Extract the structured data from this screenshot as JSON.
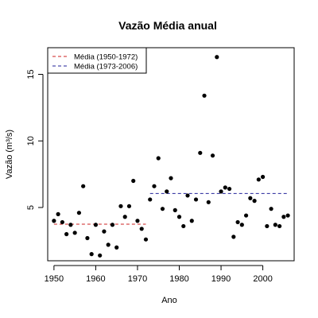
{
  "chart_data": {
    "type": "scatter",
    "title": "Vazão Média anual",
    "xlabel": "Ano",
    "ylabel": "Vazão (m³/s)",
    "xlim": [
      1948.5,
      2007.5
    ],
    "ylim": [
      1.0,
      17.0
    ],
    "x_ticks": [
      1950,
      1960,
      1970,
      1980,
      1990,
      2000
    ],
    "y_ticks": [
      5,
      10,
      15
    ],
    "grid": false,
    "legend_position": "top-left",
    "point_color": "#000000",
    "series": [
      {
        "name": "Vazão",
        "points": [
          [
            1950,
            4.0
          ],
          [
            1951,
            4.5
          ],
          [
            1952,
            3.9
          ],
          [
            1953,
            3.0
          ],
          [
            1954,
            3.7
          ],
          [
            1955,
            3.1
          ],
          [
            1956,
            4.6
          ],
          [
            1957,
            6.6
          ],
          [
            1958,
            2.7
          ],
          [
            1959,
            1.5
          ],
          [
            1960,
            3.7
          ],
          [
            1961,
            1.4
          ],
          [
            1962,
            3.2
          ],
          [
            1963,
            2.2
          ],
          [
            1964,
            3.7
          ],
          [
            1965,
            2.0
          ],
          [
            1966,
            5.1
          ],
          [
            1967,
            4.3
          ],
          [
            1968,
            5.1
          ],
          [
            1969,
            7.0
          ],
          [
            1970,
            4.0
          ],
          [
            1971,
            3.4
          ],
          [
            1972,
            2.6
          ],
          [
            1973,
            5.6
          ],
          [
            1974,
            6.6
          ],
          [
            1975,
            8.7
          ],
          [
            1976,
            4.9
          ],
          [
            1977,
            6.2
          ],
          [
            1978,
            7.2
          ],
          [
            1979,
            4.8
          ],
          [
            1980,
            4.3
          ],
          [
            1981,
            3.6
          ],
          [
            1982,
            5.9
          ],
          [
            1983,
            4.0
          ],
          [
            1984,
            5.6
          ],
          [
            1985,
            9.1
          ],
          [
            1986,
            13.4
          ],
          [
            1987,
            5.4
          ],
          [
            1988,
            8.9
          ],
          [
            1989,
            16.3
          ],
          [
            1990,
            6.2
          ],
          [
            1991,
            6.5
          ],
          [
            1992,
            6.4
          ],
          [
            1993,
            2.8
          ],
          [
            1994,
            3.9
          ],
          [
            1995,
            3.7
          ],
          [
            1996,
            4.4
          ],
          [
            1997,
            5.7
          ],
          [
            1998,
            5.5
          ],
          [
            1999,
            7.1
          ],
          [
            2000,
            7.3
          ],
          [
            2001,
            3.6
          ],
          [
            2002,
            4.9
          ],
          [
            2003,
            3.7
          ],
          [
            2004,
            3.6
          ],
          [
            2005,
            4.3
          ],
          [
            2006,
            4.4
          ]
        ]
      }
    ],
    "mean_lines": [
      {
        "name": "Média (1950-1972)",
        "x_start": 1950,
        "x_end": 1972,
        "y": 3.75,
        "color": "#cc2222"
      },
      {
        "name": "Média (1973-2006)",
        "x_start": 1973,
        "x_end": 2006,
        "y": 6.05,
        "color": "#222299"
      }
    ]
  }
}
